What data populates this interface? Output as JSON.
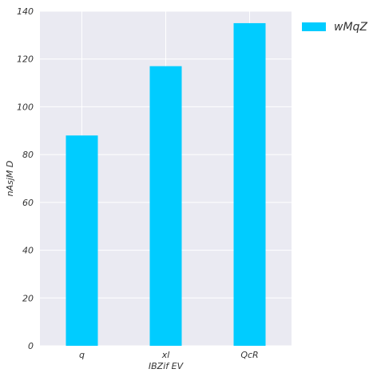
{
  "chart_data": {
    "type": "bar",
    "categories": [
      "q",
      "xl",
      "QcR"
    ],
    "series": [
      {
        "name": "wMqZ",
        "values": [
          88,
          117,
          135
        ],
        "color": "#00CCFF"
      }
    ],
    "xlabel": "IBZif EV",
    "ylabel": "nAsjM D",
    "ylim": [
      0,
      140
    ],
    "yticks": [
      0,
      20,
      40,
      60,
      80,
      100,
      120,
      140
    ],
    "grid": true,
    "legend_position": "upper-right, outside plot area",
    "plot_background": "#EAEAF2",
    "grid_color": "#FFFFFF"
  }
}
